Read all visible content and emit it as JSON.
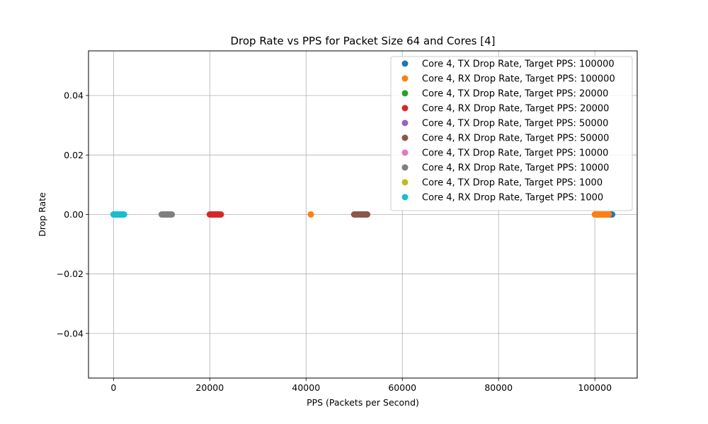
{
  "chart_data": {
    "type": "scatter",
    "title": "Drop Rate vs PPS for Packet Size 64 and Cores [4]",
    "xlabel": "PPS (Packets per Second)",
    "ylabel": "Drop Rate",
    "xlim": [
      -5200,
      108800
    ],
    "ylim": [
      -0.055,
      0.055
    ],
    "xticks": [
      0,
      20000,
      40000,
      60000,
      80000,
      100000
    ],
    "xtick_labels": [
      "0",
      "20000",
      "40000",
      "60000",
      "80000",
      "100000"
    ],
    "yticks": [
      -0.04,
      -0.02,
      0.0,
      0.02,
      0.04
    ],
    "ytick_labels": [
      "−0.04",
      "−0.02",
      "0.00",
      "0.02",
      "0.04"
    ],
    "grid": true,
    "legend_position": "top-right",
    "series": [
      {
        "name": "Core 4, TX Drop Rate, Target PPS: 100000",
        "color": "#1f77b4",
        "x": [
          100200,
          100700,
          101200,
          101700,
          102200,
          102600,
          103000,
          103300,
          103600
        ],
        "y": [
          0,
          0,
          0,
          0,
          0,
          0,
          0,
          0,
          0
        ]
      },
      {
        "name": "Core 4, RX Drop Rate, Target PPS: 100000",
        "color": "#ff7f0e",
        "x": [
          41000,
          100000,
          100500,
          101000,
          101400,
          101800,
          102200,
          102600,
          102900
        ],
        "y": [
          0,
          0,
          0,
          0,
          0,
          0,
          0,
          0,
          0
        ]
      },
      {
        "name": "Core 4, TX Drop Rate, Target PPS: 20000",
        "color": "#2ca02c",
        "x": [
          20100,
          20600,
          21100,
          21600,
          22100
        ],
        "y": [
          0,
          0,
          0,
          0,
          0
        ]
      },
      {
        "name": "Core 4, RX Drop Rate, Target PPS: 20000",
        "color": "#d62728",
        "x": [
          20000,
          20300,
          20600,
          20900,
          21200,
          21500,
          21800,
          22100,
          22300
        ],
        "y": [
          0,
          0,
          0,
          0,
          0,
          0,
          0,
          0,
          0
        ]
      },
      {
        "name": "Core 4, TX Drop Rate, Target PPS: 50000",
        "color": "#9467bd",
        "x": [
          50200,
          50800,
          51400,
          52000,
          52400
        ],
        "y": [
          0,
          0,
          0,
          0,
          0
        ]
      },
      {
        "name": "Core 4, RX Drop Rate, Target PPS: 50000",
        "color": "#8c564b",
        "x": [
          50000,
          50300,
          50600,
          50900,
          51200,
          51500,
          51800,
          52100,
          52400,
          52700
        ],
        "y": [
          0,
          0,
          0,
          0,
          0,
          0,
          0,
          0,
          0,
          0
        ]
      },
      {
        "name": "Core 4, TX Drop Rate, Target PPS: 10000",
        "color": "#e377c2",
        "x": [
          10200,
          10700,
          11200,
          11700
        ],
        "y": [
          0,
          0,
          0,
          0
        ]
      },
      {
        "name": "Core 4, RX Drop Rate, Target PPS: 10000",
        "color": "#7f7f7f",
        "x": [
          10000,
          10300,
          10600,
          10900,
          11200,
          11500,
          11800,
          12100
        ],
        "y": [
          0,
          0,
          0,
          0,
          0,
          0,
          0,
          0
        ]
      },
      {
        "name": "Core 4, TX Drop Rate, Target PPS: 1000",
        "color": "#bcbd22",
        "x": [
          0,
          500,
          1000,
          1500
        ],
        "y": [
          0,
          0,
          0,
          0
        ]
      },
      {
        "name": "Core 4, RX Drop Rate, Target PPS: 1000",
        "color": "#17becf",
        "x": [
          0,
          250,
          500,
          750,
          1000,
          1250,
          1500,
          1750,
          2000,
          2200
        ],
        "y": [
          0,
          0,
          0,
          0,
          0,
          0,
          0,
          0,
          0,
          0
        ]
      }
    ]
  }
}
